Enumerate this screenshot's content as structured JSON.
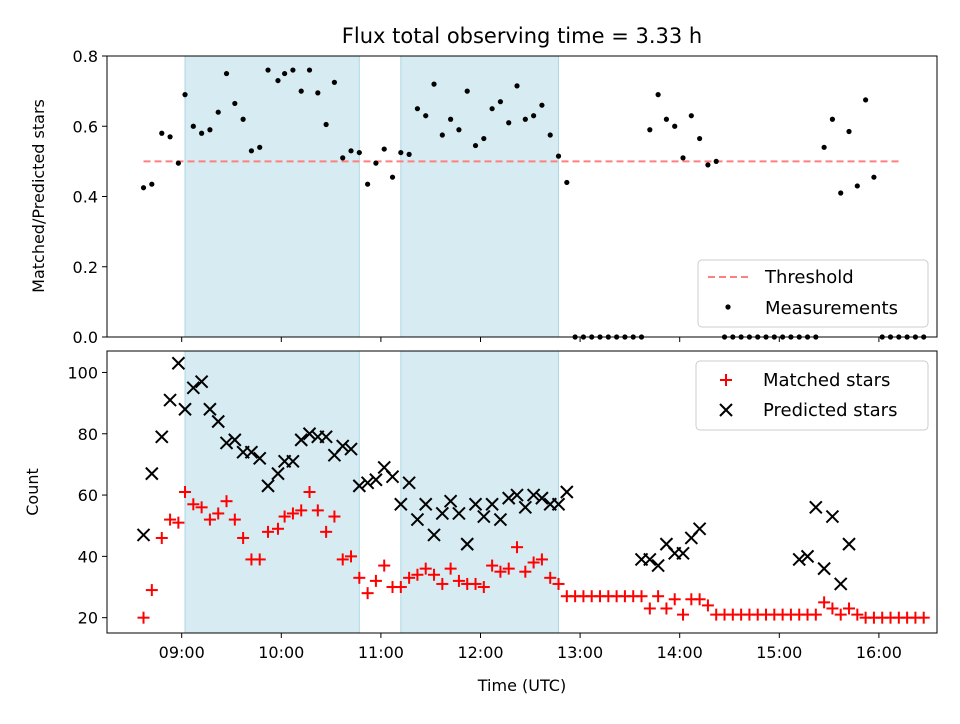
{
  "chart_data": [
    {
      "type": "scatter",
      "title": "Flux total observing time = 3.33 h",
      "xlabel": "",
      "ylabel": "Matched/Predicted stars",
      "xlim": [
        "08:15",
        "16:35"
      ],
      "ylim": [
        0,
        0.8
      ],
      "yticks": [
        "0.0",
        "0.2",
        "0.4",
        "0.6",
        "0.8"
      ],
      "shaded_intervals": [
        [
          "09:02",
          "10:47"
        ],
        [
          "11:12",
          "12:47"
        ]
      ],
      "shade_color": "#add8e6",
      "threshold": {
        "name": "Threshold",
        "value": 0.5,
        "x_range": [
          "08:37",
          "16:13"
        ],
        "color": "#ff7f7f"
      },
      "legend": {
        "position": "lower right",
        "entries": [
          "Threshold",
          "Measurements"
        ]
      },
      "series": [
        {
          "name": "Measurements",
          "color": "#000000",
          "x": [
            "08:37",
            "08:42",
            "08:48",
            "08:53",
            "08:58",
            "09:02",
            "09:07",
            "09:12",
            "09:17",
            "09:22",
            "09:27",
            "09:32",
            "09:37",
            "09:42",
            "09:47",
            "09:52",
            "09:58",
            "10:02",
            "10:07",
            "10:12",
            "10:17",
            "10:22",
            "10:27",
            "10:32",
            "10:37",
            "10:42",
            "10:47",
            "10:52",
            "10:57",
            "11:02",
            "11:07",
            "11:12",
            "11:17",
            "11:22",
            "11:27",
            "11:32",
            "11:37",
            "11:42",
            "11:47",
            "11:52",
            "11:57",
            "12:02",
            "12:07",
            "12:12",
            "12:17",
            "12:22",
            "12:27",
            "12:32",
            "12:37",
            "12:42",
            "12:47",
            "12:52",
            "12:57",
            "13:02",
            "13:07",
            "13:12",
            "13:17",
            "13:22",
            "13:27",
            "13:32",
            "13:37",
            "13:42",
            "13:47",
            "13:52",
            "13:57",
            "14:02",
            "14:07",
            "14:12",
            "14:17",
            "14:22",
            "14:27",
            "14:32",
            "14:37",
            "14:42",
            "14:47",
            "14:52",
            "14:57",
            "15:02",
            "15:07",
            "15:12",
            "15:17",
            "15:22",
            "15:27",
            "15:32",
            "15:37",
            "15:42",
            "15:47",
            "15:52",
            "15:57",
            "16:02",
            "16:07",
            "16:12",
            "16:17",
            "16:22",
            "16:27"
          ],
          "y": [
            0.425,
            0.435,
            0.58,
            0.57,
            0.495,
            0.69,
            0.6,
            0.58,
            0.59,
            0.64,
            0.75,
            0.665,
            0.62,
            0.53,
            0.54,
            0.76,
            0.73,
            0.75,
            0.76,
            0.7,
            0.76,
            0.695,
            0.605,
            0.725,
            0.51,
            0.53,
            0.525,
            0.435,
            0.495,
            0.535,
            0.455,
            0.525,
            0.52,
            0.65,
            0.63,
            0.72,
            0.575,
            0.62,
            0.59,
            0.7,
            0.545,
            0.565,
            0.65,
            0.67,
            0.61,
            0.715,
            0.62,
            0.63,
            0.66,
            0.575,
            0.515,
            0.44,
            0.0,
            0.0,
            0.0,
            0.0,
            0.0,
            0.0,
            0.0,
            0.0,
            0.0,
            0.59,
            0.69,
            0.62,
            0.6,
            0.51,
            0.63,
            0.565,
            0.49,
            0.5,
            0.0,
            0.0,
            0.0,
            0.0,
            0.0,
            0.0,
            0.0,
            0.0,
            0.0,
            0.0,
            0.0,
            0.0,
            0.54,
            0.62,
            0.41,
            0.585,
            0.43,
            0.675,
            0.455,
            0.0,
            0.0,
            0.0,
            0.0,
            0.0,
            0.0
          ]
        }
      ]
    },
    {
      "type": "scatter",
      "title": "",
      "xlabel": "Time (UTC)",
      "ylabel": "Count",
      "xlim": [
        "08:15",
        "16:35"
      ],
      "ylim": [
        15,
        107
      ],
      "xticks": [
        "09:00",
        "10:00",
        "11:00",
        "12:00",
        "13:00",
        "14:00",
        "15:00",
        "16:00"
      ],
      "yticks": [
        "20",
        "40",
        "60",
        "80",
        "100"
      ],
      "shaded_intervals": [
        [
          "09:02",
          "10:47"
        ],
        [
          "11:12",
          "12:47"
        ]
      ],
      "shade_color": "#add8e6",
      "legend": {
        "position": "upper right",
        "entries": [
          "Matched stars",
          "Predicted stars"
        ]
      },
      "series": [
        {
          "name": "Matched stars",
          "marker": "+",
          "color": "#ff0000",
          "x": [
            "08:37",
            "08:42",
            "08:48",
            "08:53",
            "08:58",
            "09:02",
            "09:07",
            "09:12",
            "09:17",
            "09:22",
            "09:27",
            "09:32",
            "09:37",
            "09:42",
            "09:47",
            "09:52",
            "09:58",
            "10:02",
            "10:07",
            "10:12",
            "10:17",
            "10:22",
            "10:27",
            "10:32",
            "10:37",
            "10:42",
            "10:47",
            "10:52",
            "10:57",
            "11:02",
            "11:07",
            "11:12",
            "11:17",
            "11:22",
            "11:27",
            "11:32",
            "11:37",
            "11:42",
            "11:47",
            "11:52",
            "11:57",
            "12:02",
            "12:07",
            "12:12",
            "12:17",
            "12:22",
            "12:27",
            "12:32",
            "12:37",
            "12:42",
            "12:47",
            "12:52",
            "12:57",
            "13:02",
            "13:07",
            "13:12",
            "13:17",
            "13:22",
            "13:27",
            "13:32",
            "13:37",
            "13:42",
            "13:47",
            "13:52",
            "13:57",
            "14:02",
            "14:07",
            "14:12",
            "14:17",
            "14:22",
            "14:27",
            "14:32",
            "14:37",
            "14:42",
            "14:47",
            "14:52",
            "14:57",
            "15:02",
            "15:07",
            "15:12",
            "15:17",
            "15:22",
            "15:27",
            "15:32",
            "15:37",
            "15:42",
            "15:47",
            "15:52",
            "15:57",
            "16:02",
            "16:07",
            "16:12",
            "16:17",
            "16:22",
            "16:27"
          ],
          "y": [
            20,
            29,
            46,
            52,
            51,
            61,
            57,
            56,
            52,
            54,
            58,
            52,
            46,
            39,
            39,
            48,
            49,
            53,
            54,
            55,
            61,
            55,
            48,
            53,
            39,
            40,
            33,
            28,
            32,
            37,
            30,
            30,
            33,
            34,
            36,
            34,
            31,
            36,
            32,
            31,
            31,
            30,
            37,
            35,
            36,
            43,
            35,
            38,
            39,
            33,
            31,
            27,
            27,
            27,
            27,
            27,
            27,
            27,
            27,
            27,
            27,
            23,
            27,
            23,
            26,
            21,
            26,
            26,
            24,
            21,
            21,
            21,
            21,
            21,
            21,
            21,
            21,
            21,
            21,
            21,
            21,
            21,
            25,
            23,
            21,
            23,
            21,
            20,
            20,
            20,
            20,
            20,
            20,
            20,
            20
          ]
        },
        {
          "name": "Predicted stars",
          "marker": "x",
          "color": "#000000",
          "x": [
            "08:37",
            "08:42",
            "08:48",
            "08:53",
            "08:58",
            "09:02",
            "09:07",
            "09:12",
            "09:17",
            "09:22",
            "09:27",
            "09:32",
            "09:37",
            "09:42",
            "09:47",
            "09:52",
            "09:58",
            "10:02",
            "10:07",
            "10:12",
            "10:17",
            "10:22",
            "10:27",
            "10:32",
            "10:37",
            "10:42",
            "10:47",
            "10:52",
            "10:57",
            "11:02",
            "11:07",
            "11:12",
            "11:17",
            "11:22",
            "11:27",
            "11:32",
            "11:37",
            "11:42",
            "11:47",
            "11:52",
            "11:57",
            "12:02",
            "12:07",
            "12:12",
            "12:17",
            "12:22",
            "12:27",
            "12:32",
            "12:37",
            "12:42",
            "12:47",
            "12:52",
            "13:37",
            "13:42",
            "13:47",
            "13:52",
            "13:57",
            "14:02",
            "14:07",
            "14:12",
            "15:12",
            "15:17",
            "15:22",
            "15:27",
            "15:32",
            "15:37",
            "15:42"
          ],
          "y": [
            47,
            67,
            79,
            91,
            103,
            88,
            95,
            97,
            88,
            84,
            77,
            78,
            74,
            74,
            72,
            63,
            67,
            71,
            71,
            78,
            80,
            79,
            79,
            73,
            76,
            75,
            63,
            64,
            65,
            69,
            66,
            57,
            64,
            52,
            57,
            47,
            54,
            58,
            54,
            44,
            57,
            53,
            57,
            52,
            59,
            60,
            56,
            60,
            59,
            57,
            57,
            61,
            39,
            39,
            37,
            44,
            41,
            41,
            46,
            49,
            39,
            40,
            56,
            36,
            53,
            31,
            44
          ]
        }
      ]
    }
  ]
}
